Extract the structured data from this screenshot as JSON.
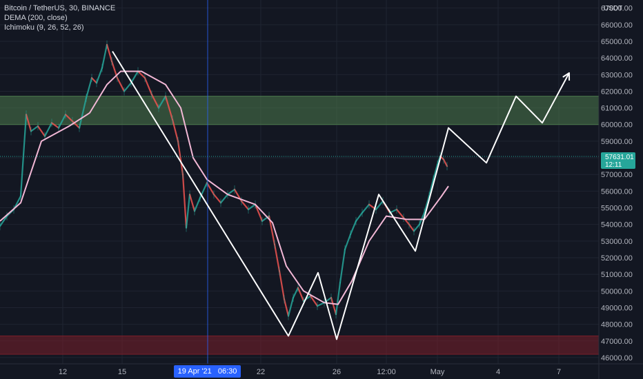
{
  "legend": {
    "symbol": "Bitcoin / TetherUS, 30, BINANCE",
    "dema": "DEMA (200, close)",
    "ichimoku": "Ichimoku (9, 26, 52, 26)"
  },
  "y_axis_unit": "USDT",
  "current_price": "57631.01",
  "countdown": "12:11",
  "crosshair": {
    "date": "19 Apr '21",
    "time": "06:30"
  },
  "colors": {
    "background": "#131722",
    "grid": "#1f2431",
    "price_line": "#26a69a",
    "crosshair": "#2962ff",
    "resistance_zone": "#4c7a4c",
    "support_zone": "#7a1f2a",
    "projection": "#ffffff",
    "dema": "#f3b8d6",
    "bull": "#26a69a",
    "bear": "#ef5350"
  },
  "chart_data": {
    "type": "line",
    "ylim": [
      45500,
      67400
    ],
    "y_ticks": [
      46000,
      47000,
      48000,
      49000,
      50000,
      51000,
      52000,
      53000,
      54000,
      55000,
      56000,
      57000,
      58000,
      59000,
      60000,
      61000,
      62000,
      63000,
      64000,
      65000,
      66000,
      67000
    ],
    "x_ticks": [
      "12",
      "15",
      "22",
      "26",
      "12:00",
      "May",
      "4",
      "7"
    ],
    "zones": [
      {
        "name": "resistance",
        "from": 60000,
        "to": 61700
      },
      {
        "name": "support",
        "from": 46200,
        "to": 47300
      }
    ],
    "price_series": [
      {
        "t": 0,
        "v": 53900
      },
      {
        "t": 10,
        "v": 54500
      },
      {
        "t": 20,
        "v": 54900
      },
      {
        "t": 30,
        "v": 55700
      },
      {
        "t": 38,
        "v": 60600
      },
      {
        "t": 45,
        "v": 59600
      },
      {
        "t": 55,
        "v": 59900
      },
      {
        "t": 65,
        "v": 59300
      },
      {
        "t": 75,
        "v": 60100
      },
      {
        "t": 85,
        "v": 59800
      },
      {
        "t": 95,
        "v": 60600
      },
      {
        "t": 105,
        "v": 60200
      },
      {
        "t": 115,
        "v": 59800
      },
      {
        "t": 125,
        "v": 61600
      },
      {
        "t": 133,
        "v": 62800
      },
      {
        "t": 140,
        "v": 62500
      },
      {
        "t": 148,
        "v": 63400
      },
      {
        "t": 155,
        "v": 64800
      },
      {
        "t": 162,
        "v": 63800
      },
      {
        "t": 170,
        "v": 62800
      },
      {
        "t": 180,
        "v": 62000
      },
      {
        "t": 190,
        "v": 62500
      },
      {
        "t": 200,
        "v": 63200
      },
      {
        "t": 210,
        "v": 62800
      },
      {
        "t": 220,
        "v": 61800
      },
      {
        "t": 230,
        "v": 61000
      },
      {
        "t": 240,
        "v": 61700
      },
      {
        "t": 250,
        "v": 60300
      },
      {
        "t": 258,
        "v": 59000
      },
      {
        "t": 265,
        "v": 57000
      },
      {
        "t": 270,
        "v": 53800
      },
      {
        "t": 275,
        "v": 55800
      },
      {
        "t": 282,
        "v": 54800
      },
      {
        "t": 290,
        "v": 55600
      },
      {
        "t": 300,
        "v": 56500
      },
      {
        "t": 310,
        "v": 55800
      },
      {
        "t": 320,
        "v": 55300
      },
      {
        "t": 330,
        "v": 55800
      },
      {
        "t": 340,
        "v": 56100
      },
      {
        "t": 350,
        "v": 55400
      },
      {
        "t": 360,
        "v": 54900
      },
      {
        "t": 370,
        "v": 55200
      },
      {
        "t": 380,
        "v": 54200
      },
      {
        "t": 390,
        "v": 54500
      },
      {
        "t": 398,
        "v": 52800
      },
      {
        "t": 405,
        "v": 51200
      },
      {
        "t": 412,
        "v": 49500
      },
      {
        "t": 418,
        "v": 48500
      },
      {
        "t": 425,
        "v": 49600
      },
      {
        "t": 432,
        "v": 50200
      },
      {
        "t": 440,
        "v": 49400
      },
      {
        "t": 450,
        "v": 49700
      },
      {
        "t": 460,
        "v": 49100
      },
      {
        "t": 470,
        "v": 49300
      },
      {
        "t": 480,
        "v": 49600
      },
      {
        "t": 487,
        "v": 48600
      },
      {
        "t": 493,
        "v": 50500
      },
      {
        "t": 500,
        "v": 52500
      },
      {
        "t": 508,
        "v": 53400
      },
      {
        "t": 516,
        "v": 54200
      },
      {
        "t": 525,
        "v": 54700
      },
      {
        "t": 535,
        "v": 55200
      },
      {
        "t": 545,
        "v": 54900
      },
      {
        "t": 555,
        "v": 55400
      },
      {
        "t": 565,
        "v": 54700
      },
      {
        "t": 575,
        "v": 54900
      },
      {
        "t": 585,
        "v": 54400
      },
      {
        "t": 593,
        "v": 54000
      },
      {
        "t": 600,
        "v": 53600
      },
      {
        "t": 608,
        "v": 54000
      },
      {
        "t": 615,
        "v": 54700
      },
      {
        "t": 622,
        "v": 55700
      },
      {
        "t": 628,
        "v": 56700
      },
      {
        "t": 634,
        "v": 57600
      },
      {
        "t": 638,
        "v": 58100
      },
      {
        "t": 643,
        "v": 57900
      },
      {
        "t": 648,
        "v": 57500
      }
    ],
    "dema_series": [
      {
        "t": 0,
        "v": 54200
      },
      {
        "t": 30,
        "v": 55300
      },
      {
        "t": 60,
        "v": 59000
      },
      {
        "t": 100,
        "v": 59900
      },
      {
        "t": 130,
        "v": 60700
      },
      {
        "t": 155,
        "v": 62400
      },
      {
        "t": 175,
        "v": 63200
      },
      {
        "t": 205,
        "v": 63200
      },
      {
        "t": 240,
        "v": 62400
      },
      {
        "t": 262,
        "v": 61000
      },
      {
        "t": 280,
        "v": 58000
      },
      {
        "t": 300,
        "v": 56700
      },
      {
        "t": 330,
        "v": 55800
      },
      {
        "t": 370,
        "v": 55200
      },
      {
        "t": 395,
        "v": 54100
      },
      {
        "t": 415,
        "v": 51500
      },
      {
        "t": 440,
        "v": 50000
      },
      {
        "t": 470,
        "v": 49300
      },
      {
        "t": 490,
        "v": 49200
      },
      {
        "t": 510,
        "v": 50600
      },
      {
        "t": 535,
        "v": 53000
      },
      {
        "t": 560,
        "v": 54500
      },
      {
        "t": 590,
        "v": 54300
      },
      {
        "t": 615,
        "v": 54300
      },
      {
        "t": 640,
        "v": 55700
      },
      {
        "t": 650,
        "v": 56300
      }
    ],
    "projection_path": [
      {
        "t": 163,
        "v": 64400
      },
      {
        "t": 418,
        "v": 47300
      },
      {
        "t": 461,
        "v": 51100
      },
      {
        "t": 488,
        "v": 47100
      },
      {
        "t": 549,
        "v": 55800
      },
      {
        "t": 602,
        "v": 52400
      },
      {
        "t": 650,
        "v": 59800
      },
      {
        "t": 705,
        "v": 57700
      },
      {
        "t": 748,
        "v": 61700
      },
      {
        "t": 786,
        "v": 60100
      },
      {
        "t": 825,
        "v": 63100
      }
    ]
  }
}
